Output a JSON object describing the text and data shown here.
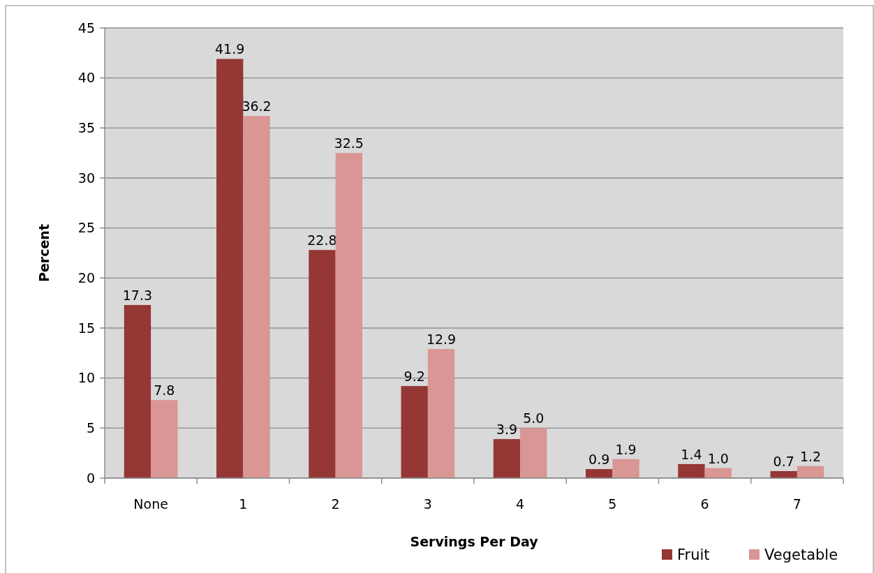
{
  "chart_data": {
    "type": "bar",
    "xlabel": "Servings Per Day",
    "ylabel": "Percent",
    "categories": [
      "None",
      "1",
      "2",
      "3",
      "4",
      "5",
      "6",
      "7"
    ],
    "series": [
      {
        "name": "Fruit",
        "color": "#953735",
        "values": [
          17.3,
          41.9,
          22.8,
          9.2,
          3.9,
          0.9,
          1.4,
          0.7
        ],
        "value_labels": [
          "17.3",
          "41.9",
          "22.8",
          "9.2",
          "3.9",
          "0.9",
          "1.4",
          "0.7"
        ]
      },
      {
        "name": "Vegetable",
        "color": "#d99694",
        "values": [
          7.8,
          36.2,
          32.5,
          12.9,
          5.0,
          1.9,
          1.0,
          1.2
        ],
        "value_labels": [
          "7.8",
          "36.2",
          "32.5",
          "12.9",
          "5.0",
          "1.9",
          "1.0",
          "1.2"
        ]
      }
    ],
    "ylim": [
      0,
      45
    ],
    "yticks": [
      0,
      5,
      10,
      15,
      20,
      25,
      30,
      35,
      40,
      45
    ],
    "grid": "y",
    "legend": "bottom right"
  }
}
